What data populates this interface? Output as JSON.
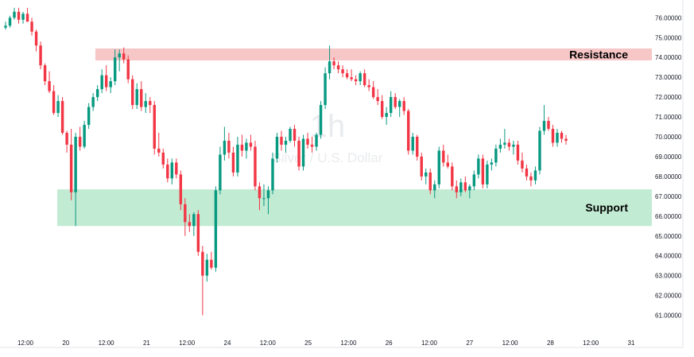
{
  "chart_data": {
    "type": "candlestick",
    "watermark": {
      "interval": "1h",
      "symbol": "Silver / U.S. Dollar"
    },
    "ylim": [
      60.4,
      76.8
    ],
    "y_ticks": [
      "76.00000",
      "75.00000",
      "74.00000",
      "73.00000",
      "72.00000",
      "71.00000",
      "70.00000",
      "69.00000",
      "68.00000",
      "67.00000",
      "66.00000",
      "65.00000",
      "64.00000",
      "63.00000",
      "62.00000",
      "61.00000"
    ],
    "x_ticks": [
      "12:00",
      "20",
      "12:00",
      "21",
      "12:00",
      "24",
      "12:00",
      "25",
      "12:00",
      "26",
      "12:00",
      "27",
      "12:00",
      "28",
      "12:00",
      "31"
    ],
    "zones": [
      {
        "label": "Resistance",
        "top": 74.45,
        "bottom": 73.85,
        "color": "#f7c6c6"
      },
      {
        "label": "Support",
        "top": 67.35,
        "bottom": 65.5,
        "color": "#c2ebd3"
      }
    ],
    "colors": {
      "up": "#089981",
      "down": "#f23645",
      "axis_text": "#131722"
    },
    "candles": [
      [
        75.5,
        75.8,
        75.4,
        75.6
      ],
      [
        75.6,
        76.1,
        75.5,
        76.0
      ],
      [
        76.0,
        76.5,
        75.9,
        76.3
      ],
      [
        76.3,
        76.5,
        75.7,
        75.9
      ],
      [
        75.9,
        76.3,
        75.7,
        76.2
      ],
      [
        76.2,
        76.5,
        75.8,
        75.8
      ],
      [
        75.8,
        76.0,
        75.1,
        75.3
      ],
      [
        75.3,
        75.4,
        74.3,
        74.6
      ],
      [
        74.6,
        74.8,
        73.4,
        73.6
      ],
      [
        73.6,
        73.7,
        72.6,
        72.8
      ],
      [
        72.8,
        73.3,
        72.2,
        72.3
      ],
      [
        72.3,
        72.6,
        71.1,
        71.2
      ],
      [
        71.2,
        72.1,
        71.0,
        71.8
      ],
      [
        71.8,
        72.0,
        70.1,
        70.2
      ],
      [
        70.2,
        70.3,
        69.2,
        69.6
      ],
      [
        69.6,
        70.4,
        66.8,
        67.2
      ],
      [
        67.2,
        70.2,
        65.5,
        70.0
      ],
      [
        70.0,
        70.5,
        69.3,
        69.5
      ],
      [
        69.5,
        70.8,
        69.4,
        70.6
      ],
      [
        70.6,
        71.7,
        70.4,
        71.5
      ],
      [
        71.5,
        72.2,
        71.3,
        72.0
      ],
      [
        72.0,
        72.6,
        71.8,
        72.4
      ],
      [
        72.4,
        73.4,
        72.2,
        73.1
      ],
      [
        73.1,
        73.6,
        72.3,
        72.5
      ],
      [
        72.5,
        73.0,
        72.2,
        72.8
      ],
      [
        72.8,
        74.4,
        72.6,
        74.0
      ],
      [
        74.0,
        74.4,
        73.3,
        74.2
      ],
      [
        74.2,
        74.5,
        73.7,
        73.9
      ],
      [
        73.9,
        74.1,
        72.7,
        72.9
      ],
      [
        72.9,
        73.1,
        71.4,
        71.6
      ],
      [
        71.6,
        72.7,
        71.4,
        72.4
      ],
      [
        72.4,
        72.8,
        71.3,
        71.5
      ],
      [
        71.5,
        72.2,
        71.2,
        71.8
      ],
      [
        71.8,
        72.0,
        71.2,
        71.6
      ],
      [
        71.6,
        71.8,
        69.1,
        69.4
      ],
      [
        69.4,
        70.2,
        69.0,
        69.2
      ],
      [
        69.2,
        69.4,
        68.4,
        68.6
      ],
      [
        68.6,
        68.9,
        67.7,
        67.9
      ],
      [
        67.9,
        68.9,
        67.6,
        68.7
      ],
      [
        68.7,
        68.9,
        67.9,
        68.1
      ],
      [
        68.1,
        68.3,
        66.3,
        66.6
      ],
      [
        66.6,
        66.9,
        65.0,
        65.7
      ],
      [
        65.7,
        66.1,
        65.2,
        65.5
      ],
      [
        65.5,
        66.2,
        65.0,
        66.1
      ],
      [
        66.1,
        66.3,
        64.0,
        64.2
      ],
      [
        64.2,
        64.5,
        61.0,
        63.0
      ],
      [
        63.0,
        64.1,
        62.7,
        63.8
      ],
      [
        63.8,
        64.2,
        63.3,
        63.4
      ],
      [
        63.4,
        67.5,
        63.2,
        67.3
      ],
      [
        67.3,
        69.5,
        67.1,
        69.1
      ],
      [
        69.1,
        70.5,
        68.8,
        69.8
      ],
      [
        69.8,
        70.2,
        68.9,
        69.2
      ],
      [
        69.2,
        69.5,
        68.0,
        68.2
      ],
      [
        68.2,
        70.0,
        68.0,
        69.6
      ],
      [
        69.6,
        70.1,
        69.0,
        69.3
      ],
      [
        69.3,
        69.9,
        68.9,
        69.7
      ],
      [
        69.7,
        70.1,
        69.3,
        69.5
      ],
      [
        69.5,
        69.8,
        67.3,
        67.5
      ],
      [
        67.5,
        67.7,
        66.3,
        66.9
      ],
      [
        66.9,
        67.6,
        66.5,
        66.9
      ],
      [
        66.9,
        67.5,
        66.1,
        67.3
      ],
      [
        67.3,
        69.2,
        67.1,
        68.9
      ],
      [
        68.9,
        70.2,
        68.7,
        70.0
      ],
      [
        70.0,
        70.3,
        69.3,
        69.6
      ],
      [
        69.6,
        70.0,
        69.2,
        69.8
      ],
      [
        69.8,
        70.5,
        69.7,
        70.4
      ],
      [
        70.4,
        70.6,
        69.5,
        69.8
      ],
      [
        69.8,
        70.0,
        68.3,
        68.5
      ],
      [
        68.5,
        70.1,
        68.3,
        69.9
      ],
      [
        69.9,
        70.2,
        69.4,
        69.6
      ],
      [
        69.6,
        70.0,
        69.2,
        69.5
      ],
      [
        69.5,
        70.2,
        69.3,
        70.1
      ],
      [
        70.1,
        71.8,
        69.9,
        71.6
      ],
      [
        71.6,
        73.5,
        71.4,
        73.2
      ],
      [
        73.2,
        74.6,
        72.9,
        73.8
      ],
      [
        73.8,
        74.0,
        73.4,
        73.6
      ],
      [
        73.6,
        73.8,
        73.2,
        73.4
      ],
      [
        73.4,
        73.6,
        73.0,
        73.2
      ],
      [
        73.2,
        73.4,
        72.9,
        73.0
      ],
      [
        73.0,
        73.4,
        72.8,
        72.9
      ],
      [
        72.9,
        73.1,
        72.6,
        72.8
      ],
      [
        72.8,
        73.3,
        72.6,
        73.2
      ],
      [
        73.2,
        73.4,
        72.5,
        72.6
      ],
      [
        72.6,
        72.9,
        72.3,
        72.5
      ],
      [
        72.5,
        72.8,
        71.9,
        72.0
      ],
      [
        72.0,
        72.4,
        71.6,
        71.8
      ],
      [
        71.8,
        72.1,
        70.9,
        71.0
      ],
      [
        71.0,
        71.5,
        70.6,
        71.2
      ],
      [
        71.2,
        72.3,
        71.0,
        72.0
      ],
      [
        72.0,
        72.2,
        71.4,
        71.5
      ],
      [
        71.5,
        71.9,
        71.0,
        71.8
      ],
      [
        71.8,
        72.0,
        71.1,
        71.3
      ],
      [
        71.3,
        71.4,
        69.1,
        69.3
      ],
      [
        69.3,
        70.2,
        69.1,
        70.0
      ],
      [
        70.0,
        70.1,
        68.8,
        69.0
      ],
      [
        69.0,
        69.2,
        67.8,
        68.0
      ],
      [
        68.0,
        68.4,
        67.6,
        68.2
      ],
      [
        68.2,
        68.4,
        67.1,
        67.3
      ],
      [
        67.3,
        67.8,
        66.9,
        67.6
      ],
      [
        67.6,
        69.5,
        67.4,
        69.3
      ],
      [
        69.3,
        69.6,
        68.5,
        68.7
      ],
      [
        68.7,
        69.1,
        68.4,
        68.5
      ],
      [
        68.5,
        68.7,
        67.3,
        67.5
      ],
      [
        67.5,
        67.8,
        66.9,
        67.2
      ],
      [
        67.2,
        67.9,
        67.0,
        67.7
      ],
      [
        67.7,
        68.0,
        67.2,
        67.3
      ],
      [
        67.3,
        67.6,
        66.9,
        67.5
      ],
      [
        67.5,
        68.3,
        67.3,
        68.1
      ],
      [
        68.1,
        69.1,
        67.9,
        68.9
      ],
      [
        68.9,
        69.1,
        67.4,
        67.6
      ],
      [
        67.6,
        68.8,
        67.4,
        68.6
      ],
      [
        68.6,
        68.9,
        68.3,
        68.7
      ],
      [
        68.7,
        69.6,
        68.5,
        69.4
      ],
      [
        69.4,
        69.9,
        69.2,
        69.6
      ],
      [
        69.6,
        70.4,
        69.4,
        69.7
      ],
      [
        69.7,
        69.9,
        69.3,
        69.5
      ],
      [
        69.5,
        69.8,
        69.1,
        69.6
      ],
      [
        69.6,
        69.8,
        68.6,
        68.8
      ],
      [
        68.8,
        69.2,
        68.2,
        68.4
      ],
      [
        68.4,
        68.6,
        67.8,
        68.0
      ],
      [
        68.0,
        68.2,
        67.5,
        67.8
      ],
      [
        67.8,
        68.5,
        67.6,
        68.3
      ],
      [
        68.3,
        70.5,
        68.1,
        70.3
      ],
      [
        70.3,
        71.6,
        70.1,
        70.8
      ],
      [
        70.8,
        71.0,
        70.3,
        70.4
      ],
      [
        70.4,
        70.6,
        69.5,
        69.7
      ],
      [
        69.7,
        70.4,
        69.5,
        70.2
      ],
      [
        70.2,
        70.3,
        69.7,
        69.9
      ],
      [
        69.9,
        70.1,
        69.6,
        69.8
      ]
    ]
  }
}
